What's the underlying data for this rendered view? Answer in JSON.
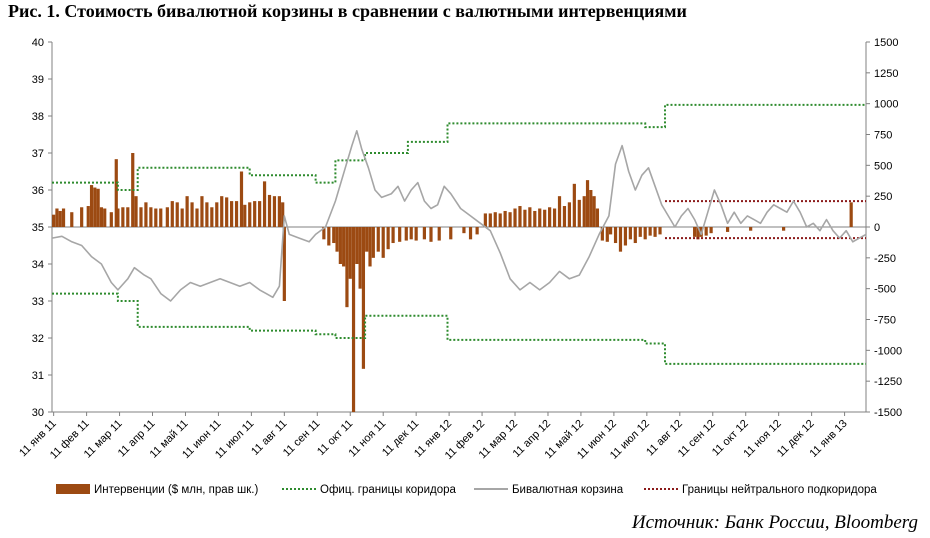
{
  "title": "Рис. 1. Стоимость бивалютной корзины в сравнении с валютными интервенциями",
  "source": "Источник: Банк России, Bloomberg",
  "colors": {
    "intervention": "#9C4A12",
    "corridor": "#2E8B2E",
    "basket": "#A6A6A6",
    "neutral": "#8B1A1A"
  },
  "chart_data": {
    "type": "bar+line",
    "x_labels": [
      "11 янв 11",
      "11 фев 11",
      "11 мар 11",
      "11 апр 11",
      "11 май 11",
      "11 июн 11",
      "11 июл 11",
      "11 авг 11",
      "11 сен 11",
      "11 окт 11",
      "11 ноя 11",
      "11 дек 11",
      "11 янв 12",
      "11 фев 12",
      "11 мар 12",
      "11 апр 12",
      "11 май 12",
      "11 июн 12",
      "11 июл 12",
      "11 авг 12",
      "11 сен 12",
      "11 окт 12",
      "11 ноя 12",
      "11 дек 12",
      "11 янв 13"
    ],
    "y_left": {
      "min": 30,
      "max": 40,
      "ticks": [
        "30",
        "31",
        "32",
        "33",
        "34",
        "35",
        "36",
        "37",
        "38",
        "39",
        "40"
      ]
    },
    "y_right": {
      "min": -1500,
      "max": 1500,
      "ticks": [
        "-1500",
        "-1250",
        "-1000",
        "-750",
        "-500",
        "-250",
        "0",
        "250",
        "500",
        "750",
        "1000",
        "1250",
        "1500"
      ]
    },
    "legend": [
      {
        "label": "Интервенции ($ млн, прав шк.)",
        "kind": "bar"
      },
      {
        "label": "Офиц. границы коридора",
        "kind": "dotted-green"
      },
      {
        "label": "Бивалютная корзина",
        "kind": "line-gray"
      },
      {
        "label": "Границы нейтрального подкоридора",
        "kind": "dotted-red"
      }
    ],
    "corridor_upper": [
      [
        0,
        36.2
      ],
      [
        2,
        36.0
      ],
      [
        2.6,
        36.6
      ],
      [
        6,
        36.4
      ],
      [
        8,
        36.2
      ],
      [
        8.6,
        36.8
      ],
      [
        9.5,
        37.0
      ],
      [
        10.8,
        37.3
      ],
      [
        11.8,
        37.3
      ],
      [
        12,
        37.8
      ],
      [
        18,
        37.7
      ],
      [
        18.6,
        38.3
      ],
      [
        24.7,
        38.3
      ]
    ],
    "corridor_lower": [
      [
        0,
        33.2
      ],
      [
        2,
        33.0
      ],
      [
        2.6,
        32.3
      ],
      [
        6,
        32.2
      ],
      [
        8,
        32.1
      ],
      [
        8.6,
        32.0
      ],
      [
        9.5,
        32.6
      ],
      [
        10.8,
        32.6
      ],
      [
        11.8,
        32.6
      ],
      [
        12,
        31.95
      ],
      [
        18,
        31.85
      ],
      [
        18.6,
        31.3
      ],
      [
        24.7,
        31.3
      ]
    ],
    "neutral_upper": [
      [
        18.6,
        35.7
      ],
      [
        24.7,
        35.7
      ]
    ],
    "neutral_lower": [
      [
        18.6,
        34.7
      ],
      [
        24.7,
        34.7
      ]
    ],
    "basket": [
      [
        0,
        34.7
      ],
      [
        0.3,
        34.75
      ],
      [
        0.6,
        34.6
      ],
      [
        0.9,
        34.5
      ],
      [
        1.2,
        34.2
      ],
      [
        1.5,
        34.0
      ],
      [
        1.8,
        33.5
      ],
      [
        2.0,
        33.3
      ],
      [
        2.3,
        33.6
      ],
      [
        2.5,
        33.9
      ],
      [
        2.8,
        33.7
      ],
      [
        3.0,
        33.6
      ],
      [
        3.3,
        33.2
      ],
      [
        3.6,
        33.0
      ],
      [
        3.9,
        33.3
      ],
      [
        4.2,
        33.5
      ],
      [
        4.5,
        33.4
      ],
      [
        4.8,
        33.5
      ],
      [
        5.1,
        33.6
      ],
      [
        5.4,
        33.5
      ],
      [
        5.7,
        33.4
      ],
      [
        6.0,
        33.5
      ],
      [
        6.3,
        33.3
      ],
      [
        6.5,
        33.2
      ],
      [
        6.7,
        33.1
      ],
      [
        6.9,
        33.4
      ],
      [
        7.05,
        35.3
      ],
      [
        7.2,
        34.8
      ],
      [
        7.5,
        34.7
      ],
      [
        7.8,
        34.6
      ],
      [
        8.0,
        34.8
      ],
      [
        8.3,
        35.0
      ],
      [
        8.6,
        35.7
      ],
      [
        8.9,
        36.6
      ],
      [
        9.1,
        37.2
      ],
      [
        9.25,
        37.6
      ],
      [
        9.4,
        37.1
      ],
      [
        9.6,
        36.6
      ],
      [
        9.8,
        36.0
      ],
      [
        10.0,
        35.8
      ],
      [
        10.3,
        35.9
      ],
      [
        10.5,
        36.1
      ],
      [
        10.7,
        35.7
      ],
      [
        10.9,
        36.0
      ],
      [
        11.1,
        36.2
      ],
      [
        11.3,
        35.7
      ],
      [
        11.5,
        35.5
      ],
      [
        11.7,
        35.6
      ],
      [
        11.9,
        36.1
      ],
      [
        12.1,
        35.9
      ],
      [
        12.4,
        35.5
      ],
      [
        12.7,
        35.3
      ],
      [
        13.0,
        35.1
      ],
      [
        13.3,
        34.9
      ],
      [
        13.6,
        34.3
      ],
      [
        13.9,
        33.6
      ],
      [
        14.2,
        33.3
      ],
      [
        14.5,
        33.5
      ],
      [
        14.8,
        33.3
      ],
      [
        15.1,
        33.5
      ],
      [
        15.4,
        33.8
      ],
      [
        15.7,
        33.6
      ],
      [
        16.0,
        33.7
      ],
      [
        16.3,
        34.2
      ],
      [
        16.6,
        34.8
      ],
      [
        16.9,
        35.3
      ],
      [
        17.1,
        36.7
      ],
      [
        17.3,
        37.2
      ],
      [
        17.5,
        36.5
      ],
      [
        17.7,
        36.0
      ],
      [
        17.9,
        36.4
      ],
      [
        18.1,
        36.6
      ],
      [
        18.3,
        36.1
      ],
      [
        18.5,
        35.6
      ],
      [
        18.7,
        35.3
      ],
      [
        18.9,
        35.0
      ],
      [
        19.1,
        35.3
      ],
      [
        19.3,
        35.5
      ],
      [
        19.5,
        35.2
      ],
      [
        19.7,
        34.8
      ],
      [
        19.9,
        35.4
      ],
      [
        20.1,
        36.0
      ],
      [
        20.3,
        35.6
      ],
      [
        20.5,
        35.1
      ],
      [
        20.7,
        35.4
      ],
      [
        20.9,
        35.1
      ],
      [
        21.1,
        35.3
      ],
      [
        21.3,
        35.2
      ],
      [
        21.5,
        35.1
      ],
      [
        21.7,
        35.4
      ],
      [
        21.9,
        35.6
      ],
      [
        22.1,
        35.5
      ],
      [
        22.3,
        35.4
      ],
      [
        22.5,
        35.7
      ],
      [
        22.7,
        35.4
      ],
      [
        22.9,
        35.0
      ],
      [
        23.1,
        35.1
      ],
      [
        23.3,
        34.9
      ],
      [
        23.5,
        35.2
      ],
      [
        23.7,
        34.9
      ],
      [
        23.9,
        34.7
      ],
      [
        24.1,
        34.9
      ],
      [
        24.3,
        34.6
      ],
      [
        24.5,
        34.7
      ],
      [
        24.7,
        34.8
      ]
    ],
    "interventions": [
      [
        0.05,
        100
      ],
      [
        0.15,
        150
      ],
      [
        0.25,
        130
      ],
      [
        0.35,
        150
      ],
      [
        0.6,
        120
      ],
      [
        0.9,
        160
      ],
      [
        1.1,
        170
      ],
      [
        1.2,
        340
      ],
      [
        1.3,
        320
      ],
      [
        1.4,
        310
      ],
      [
        1.5,
        160
      ],
      [
        1.6,
        150
      ],
      [
        1.8,
        120
      ],
      [
        1.95,
        550
      ],
      [
        2.0,
        150
      ],
      [
        2.15,
        160
      ],
      [
        2.3,
        160
      ],
      [
        2.45,
        600
      ],
      [
        2.55,
        250
      ],
      [
        2.7,
        160
      ],
      [
        2.85,
        200
      ],
      [
        3.0,
        160
      ],
      [
        3.15,
        150
      ],
      [
        3.3,
        150
      ],
      [
        3.5,
        160
      ],
      [
        3.65,
        210
      ],
      [
        3.8,
        200
      ],
      [
        3.95,
        150
      ],
      [
        4.1,
        250
      ],
      [
        4.25,
        200
      ],
      [
        4.4,
        150
      ],
      [
        4.55,
        250
      ],
      [
        4.7,
        200
      ],
      [
        4.85,
        160
      ],
      [
        5.0,
        200
      ],
      [
        5.15,
        250
      ],
      [
        5.3,
        240
      ],
      [
        5.45,
        210
      ],
      [
        5.6,
        210
      ],
      [
        5.75,
        450
      ],
      [
        5.85,
        180
      ],
      [
        6.0,
        200
      ],
      [
        6.15,
        210
      ],
      [
        6.3,
        210
      ],
      [
        6.45,
        370
      ],
      [
        6.6,
        260
      ],
      [
        6.75,
        250
      ],
      [
        6.9,
        250
      ],
      [
        7.0,
        200
      ],
      [
        7.05,
        -600
      ],
      [
        8.25,
        -100
      ],
      [
        8.4,
        -150
      ],
      [
        8.55,
        -130
      ],
      [
        8.65,
        -200
      ],
      [
        8.75,
        -300
      ],
      [
        8.85,
        -320
      ],
      [
        8.95,
        -650
      ],
      [
        9.05,
        -420
      ],
      [
        9.15,
        -1500
      ],
      [
        9.25,
        -300
      ],
      [
        9.35,
        -500
      ],
      [
        9.45,
        -1150
      ],
      [
        9.55,
        -200
      ],
      [
        9.65,
        -320
      ],
      [
        9.75,
        -250
      ],
      [
        9.9,
        -200
      ],
      [
        10.05,
        -250
      ],
      [
        10.2,
        -180
      ],
      [
        10.35,
        -130
      ],
      [
        10.55,
        -120
      ],
      [
        10.75,
        -110
      ],
      [
        10.9,
        -100
      ],
      [
        11.05,
        -110
      ],
      [
        11.3,
        -100
      ],
      [
        11.5,
        -120
      ],
      [
        11.75,
        -110
      ],
      [
        12.1,
        -100
      ],
      [
        12.5,
        -50
      ],
      [
        12.7,
        -100
      ],
      [
        12.9,
        -60
      ],
      [
        13.15,
        110
      ],
      [
        13.3,
        110
      ],
      [
        13.45,
        120
      ],
      [
        13.6,
        110
      ],
      [
        13.75,
        130
      ],
      [
        13.9,
        120
      ],
      [
        14.05,
        150
      ],
      [
        14.2,
        170
      ],
      [
        14.35,
        140
      ],
      [
        14.5,
        160
      ],
      [
        14.65,
        130
      ],
      [
        14.8,
        150
      ],
      [
        14.95,
        140
      ],
      [
        15.1,
        160
      ],
      [
        15.25,
        150
      ],
      [
        15.4,
        250
      ],
      [
        15.55,
        170
      ],
      [
        15.7,
        200
      ],
      [
        15.85,
        350
      ],
      [
        16.0,
        220
      ],
      [
        16.15,
        250
      ],
      [
        16.25,
        380
      ],
      [
        16.35,
        300
      ],
      [
        16.45,
        250
      ],
      [
        16.55,
        150
      ],
      [
        16.7,
        -110
      ],
      [
        16.85,
        -120
      ],
      [
        16.95,
        -60
      ],
      [
        17.1,
        -130
      ],
      [
        17.25,
        -200
      ],
      [
        17.4,
        -150
      ],
      [
        17.55,
        -100
      ],
      [
        17.7,
        -130
      ],
      [
        17.85,
        -80
      ],
      [
        18.0,
        -100
      ],
      [
        18.15,
        -70
      ],
      [
        18.3,
        -80
      ],
      [
        18.45,
        -60
      ],
      [
        19.5,
        -80
      ],
      [
        19.6,
        -100
      ],
      [
        19.7,
        -80
      ],
      [
        19.85,
        -70
      ],
      [
        20.0,
        -50
      ],
      [
        20.5,
        -40
      ],
      [
        21.2,
        -30
      ],
      [
        22.2,
        -30
      ],
      [
        24.25,
        200
      ]
    ]
  }
}
